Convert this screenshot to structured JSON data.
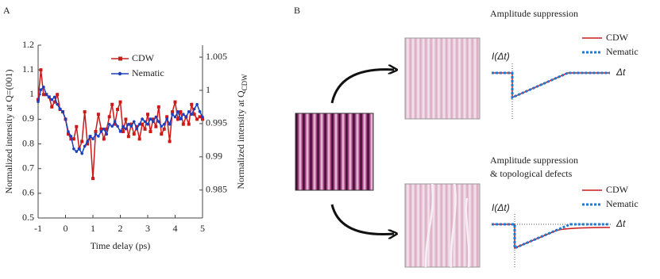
{
  "panel_a_label": "A",
  "chart_data": {
    "type": "line",
    "xlabel": "Time delay (ps)",
    "ylabel": "Normalized intensity at Q=(001)",
    "y2label": {
      "text": "Normalized intensity at Q",
      "subscript": "CDW"
    },
    "x": [
      -1,
      -0.9,
      -0.8,
      -0.7,
      -0.6,
      -0.5,
      -0.4,
      -0.3,
      -0.2,
      -0.1,
      0,
      0.1,
      0.2,
      0.3,
      0.4,
      0.5,
      0.6,
      0.7,
      0.8,
      0.9,
      1,
      1.1,
      1.2,
      1.3,
      1.4,
      1.5,
      1.6,
      1.7,
      1.8,
      1.9,
      2,
      2.1,
      2.2,
      2.3,
      2.4,
      2.5,
      2.6,
      2.7,
      2.8,
      2.9,
      3,
      3.1,
      3.2,
      3.3,
      3.4,
      3.5,
      3.6,
      3.7,
      3.8,
      3.9,
      4,
      4.1,
      4.2,
      4.3,
      4.4,
      4.5,
      4.6,
      4.7,
      4.8,
      4.9,
      5
    ],
    "series": [
      {
        "name": "CDW",
        "color": "#cc1a1a",
        "marker": "square",
        "values": [
          0.98,
          1.1,
          1.0,
          1.0,
          0.99,
          0.95,
          0.97,
          1.0,
          0.94,
          0.93,
          0.9,
          0.84,
          0.82,
          0.82,
          0.87,
          0.78,
          0.81,
          0.93,
          0.8,
          0.83,
          0.66,
          0.85,
          0.92,
          0.86,
          0.82,
          0.86,
          0.91,
          0.96,
          0.88,
          0.94,
          0.97,
          0.85,
          0.9,
          0.83,
          0.88,
          0.84,
          0.87,
          0.82,
          0.88,
          0.86,
          0.92,
          0.85,
          0.9,
          0.87,
          0.95,
          0.84,
          0.86,
          0.91,
          0.81,
          0.93,
          0.97,
          0.9,
          0.93,
          0.88,
          0.91,
          0.88,
          0.96,
          0.92,
          0.9,
          0.91,
          0.9
        ]
      },
      {
        "name": "Nematic",
        "color": "#1a3fc0",
        "marker": "circle",
        "axis": "y2",
        "values": [
          0.9983,
          1.0001,
          1.0005,
          0.9994,
          0.999,
          0.9986,
          0.999,
          0.9979,
          0.9972,
          0.9968,
          0.9957,
          0.9938,
          0.9931,
          0.9912,
          0.9908,
          0.9912,
          0.9905,
          0.9916,
          0.9923,
          0.9931,
          0.9927,
          0.9934,
          0.9931,
          0.9938,
          0.9942,
          0.9934,
          0.9949,
          0.9946,
          0.9953,
          0.9946,
          0.9938,
          0.9946,
          0.9942,
          0.9949,
          0.9946,
          0.9953,
          0.9942,
          0.9949,
          0.9957,
          0.9953,
          0.9949,
          0.9957,
          0.9953,
          0.996,
          0.9953,
          0.9946,
          0.9949,
          0.9957,
          0.9949,
          0.9964,
          0.996,
          0.9968,
          0.9957,
          0.9964,
          0.996,
          0.9968,
          0.9964,
          0.9972,
          0.9979,
          0.9968,
          0.996
        ]
      }
    ],
    "xlim": [
      -1,
      5
    ],
    "xticks": [
      -1,
      0,
      1,
      2,
      3,
      4,
      5
    ],
    "ylim": [
      0.5,
      1.2
    ],
    "yticks": [
      0.5,
      0.6,
      0.7,
      0.8,
      0.9,
      1,
      1.1,
      1.2
    ],
    "y2lim": [
      0.9808,
      1.0068
    ],
    "y2ticks": [
      0.985,
      0.99,
      0.995,
      1,
      1.005
    ],
    "legend": "upper right",
    "grid": false
  },
  "panel_b": {
    "label": "B",
    "top": {
      "title": "Amplitude suppression",
      "y_label": "I(Δt)",
      "x_label": "Δt",
      "legend": [
        "CDW",
        "Nematic"
      ]
    },
    "bottom": {
      "title": [
        "Amplitude suppression",
        "& topological defects"
      ],
      "y_label": "I(Δt)",
      "x_label": "Δt",
      "legend": [
        "CDW",
        "Nematic"
      ]
    }
  }
}
